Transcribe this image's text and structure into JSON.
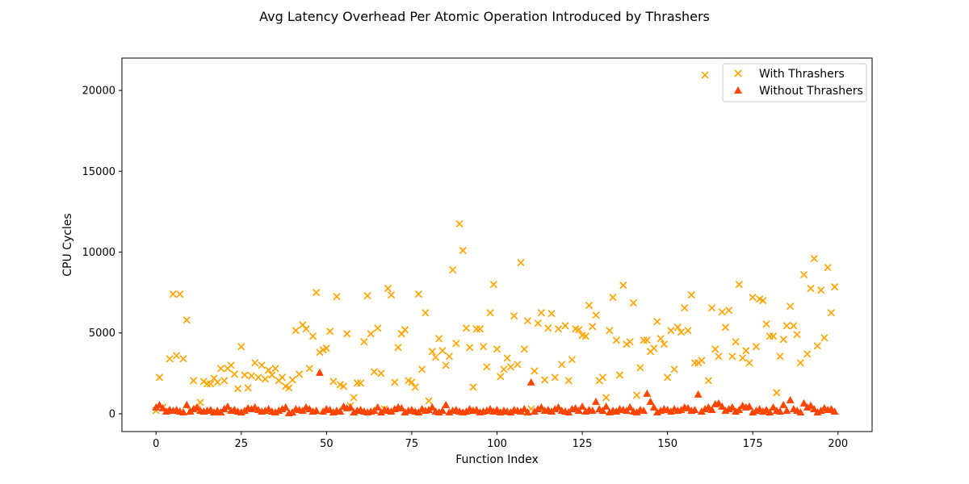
{
  "chart_data": {
    "type": "scatter",
    "title": "Avg Latency Overhead Per Atomic Operation Introduced by Thrashers",
    "xlabel": "Function Index",
    "ylabel": "CPU Cycles",
    "xlim": [
      -10,
      210
    ],
    "ylim": [
      -1100,
      22000
    ],
    "xticks": [
      0,
      25,
      50,
      75,
      100,
      125,
      150,
      175,
      200
    ],
    "yticks": [
      0,
      5000,
      10000,
      15000,
      20000
    ],
    "grid": false,
    "legend_position": "top-right",
    "series": [
      {
        "name": "With Thrashers",
        "marker": "x",
        "color": "#ffa500",
        "x": [
          0,
          1,
          2,
          3,
          4,
          5,
          6,
          7,
          8,
          9,
          10,
          11,
          12,
          13,
          14,
          15,
          16,
          17,
          18,
          19,
          20,
          21,
          22,
          23,
          24,
          25,
          26,
          27,
          28,
          29,
          30,
          31,
          32,
          33,
          34,
          35,
          36,
          37,
          38,
          39,
          40,
          41,
          42,
          43,
          44,
          45,
          46,
          47,
          48,
          49,
          50,
          51,
          52,
          53,
          54,
          55,
          56,
          57,
          58,
          59,
          60,
          61,
          62,
          63,
          64,
          65,
          66,
          67,
          68,
          69,
          70,
          71,
          72,
          73,
          74,
          75,
          76,
          77,
          78,
          79,
          80,
          81,
          82,
          83,
          84,
          85,
          86,
          87,
          88,
          89,
          90,
          91,
          92,
          93,
          94,
          95,
          96,
          97,
          98,
          99,
          100,
          101,
          102,
          103,
          104,
          105,
          106,
          107,
          108,
          109,
          110,
          111,
          112,
          113,
          114,
          115,
          116,
          117,
          118,
          119,
          120,
          121,
          122,
          123,
          124,
          125,
          126,
          127,
          128,
          129,
          130,
          131,
          132,
          133,
          134,
          135,
          136,
          137,
          138,
          139,
          140,
          141,
          142,
          143,
          144,
          145,
          146,
          147,
          148,
          149,
          150,
          151,
          152,
          153,
          154,
          155,
          156,
          157,
          158,
          159,
          160,
          161,
          162,
          163,
          164,
          165,
          166,
          167,
          168,
          169,
          170,
          171,
          172,
          173,
          174,
          175,
          176,
          177,
          178,
          179,
          180,
          181,
          182,
          183,
          184,
          185,
          186,
          187,
          188,
          189,
          190,
          191,
          192,
          193,
          194,
          195,
          196,
          197,
          198,
          199
        ],
        "y": [
          200,
          2250,
          400,
          200,
          3400,
          7400,
          3600,
          7400,
          3400,
          5800,
          200,
          2050,
          300,
          700,
          2000,
          1850,
          1850,
          2200,
          1950,
          2800,
          2050,
          2800,
          3000,
          2450,
          1550,
          4150,
          2400,
          1600,
          2350,
          3150,
          2250,
          3000,
          2150,
          2700,
          2400,
          2800,
          2050,
          2250,
          1700,
          1600,
          2100,
          5150,
          2450,
          5500,
          5250,
          2800,
          4800,
          7500,
          3800,
          3950,
          4050,
          5100,
          2000,
          7250,
          1800,
          1700,
          4950,
          500,
          1000,
          1900,
          1900,
          4450,
          7300,
          4950,
          2600,
          5300,
          2500,
          300,
          7750,
          7350,
          1950,
          4100,
          4950,
          5200,
          2050,
          1950,
          1650,
          7400,
          2750,
          6250,
          800,
          3850,
          3500,
          4650,
          3900,
          3000,
          3550,
          8900,
          4350,
          11750,
          10100,
          5300,
          4100,
          1650,
          5250,
          5250,
          4150,
          2900,
          6250,
          8000,
          4000,
          2300,
          2750,
          3450,
          2900,
          6050,
          3050,
          9350,
          4000,
          5750,
          300,
          2650,
          5600,
          6250,
          2100,
          5300,
          6200,
          2250,
          5250,
          3050,
          5450,
          2050,
          3350,
          5250,
          5200,
          4850,
          4800,
          6700,
          5400,
          6100,
          2050,
          2250,
          1000,
          5150,
          7200,
          4550,
          2400,
          7950,
          4300,
          4450,
          6850,
          1150,
          2850,
          4550,
          4550,
          3850,
          4050,
          5700,
          4650,
          4300,
          2250,
          5150,
          2750,
          5350,
          5050,
          6550,
          5150,
          7350,
          3150,
          3150,
          3300,
          20950,
          2050,
          6550,
          4000,
          3550,
          6300,
          5350,
          6400,
          3550,
          4450,
          8000,
          3450,
          3900,
          3150,
          7200,
          4150,
          7100,
          7000,
          5550,
          4800,
          4800,
          1300,
          3550,
          4600,
          5450,
          6650,
          5450,
          4900,
          3150,
          8600,
          3700,
          7750,
          9600,
          4200,
          7650,
          4700,
          9050,
          6250,
          7850
        ]
      },
      {
        "name": "Without Thrashers",
        "marker": "triangle",
        "color": "#ff4500",
        "x": [
          0,
          1,
          2,
          3,
          4,
          5,
          6,
          7,
          8,
          9,
          10,
          11,
          12,
          13,
          14,
          15,
          16,
          17,
          18,
          19,
          20,
          21,
          22,
          23,
          24,
          25,
          26,
          27,
          28,
          29,
          30,
          31,
          32,
          33,
          34,
          35,
          36,
          37,
          38,
          39,
          40,
          41,
          42,
          43,
          44,
          45,
          46,
          47,
          48,
          49,
          50,
          51,
          52,
          53,
          54,
          55,
          56,
          57,
          58,
          59,
          60,
          61,
          62,
          63,
          64,
          65,
          66,
          67,
          68,
          69,
          70,
          71,
          72,
          73,
          74,
          75,
          76,
          77,
          78,
          79,
          80,
          81,
          82,
          83,
          84,
          85,
          86,
          87,
          88,
          89,
          90,
          91,
          92,
          93,
          94,
          95,
          96,
          97,
          98,
          99,
          100,
          101,
          102,
          103,
          104,
          105,
          106,
          107,
          108,
          109,
          110,
          111,
          112,
          113,
          114,
          115,
          116,
          117,
          118,
          119,
          120,
          121,
          122,
          123,
          124,
          125,
          126,
          127,
          128,
          129,
          130,
          131,
          132,
          133,
          134,
          135,
          136,
          137,
          138,
          139,
          140,
          141,
          142,
          143,
          144,
          145,
          146,
          147,
          148,
          149,
          150,
          151,
          152,
          153,
          154,
          155,
          156,
          157,
          158,
          159,
          160,
          161,
          162,
          163,
          164,
          165,
          166,
          167,
          168,
          169,
          170,
          171,
          172,
          173,
          174,
          175,
          176,
          177,
          178,
          179,
          180,
          181,
          182,
          183,
          184,
          185,
          186,
          187,
          188,
          189,
          190,
          191,
          192,
          193,
          194,
          195,
          196,
          197,
          198,
          199
        ],
        "y": [
          400,
          550,
          350,
          150,
          250,
          200,
          250,
          150,
          100,
          550,
          150,
          300,
          400,
          200,
          150,
          200,
          250,
          100,
          200,
          100,
          300,
          450,
          200,
          250,
          150,
          100,
          200,
          350,
          300,
          400,
          250,
          150,
          200,
          300,
          150,
          100,
          200,
          300,
          400,
          50,
          100,
          300,
          250,
          200,
          400,
          300,
          150,
          200,
          2550,
          150,
          300,
          250,
          100,
          200,
          150,
          450,
          350,
          400,
          100,
          200,
          250,
          150,
          100,
          150,
          200,
          400,
          100,
          250,
          200,
          150,
          300,
          400,
          350,
          100,
          200,
          250,
          150,
          100,
          300,
          200,
          250,
          400,
          150,
          100,
          200,
          550,
          100,
          200,
          250,
          150,
          100,
          150,
          300,
          200,
          250,
          100,
          150,
          200,
          300,
          150,
          250,
          100,
          200,
          150,
          100,
          250,
          200,
          150,
          300,
          100,
          1950,
          150,
          300,
          400,
          200,
          250,
          150,
          300,
          400,
          200,
          150,
          100,
          300,
          350,
          200,
          450,
          150,
          250,
          200,
          750,
          300,
          200,
          450,
          100,
          200,
          150,
          300,
          250,
          200,
          400,
          150,
          100,
          250,
          200,
          1250,
          750,
          400,
          100,
          200,
          300,
          250,
          150,
          300,
          200,
          250,
          400,
          350,
          200,
          250,
          1200,
          150,
          300,
          400,
          250,
          600,
          650,
          450,
          200,
          300,
          400,
          150,
          250,
          500,
          400,
          450,
          100,
          200,
          300,
          150,
          250,
          100,
          400,
          200,
          150,
          550,
          200,
          850,
          300,
          200,
          100,
          650,
          400,
          500,
          300,
          100,
          200,
          350,
          250,
          300,
          150
        ]
      }
    ]
  }
}
